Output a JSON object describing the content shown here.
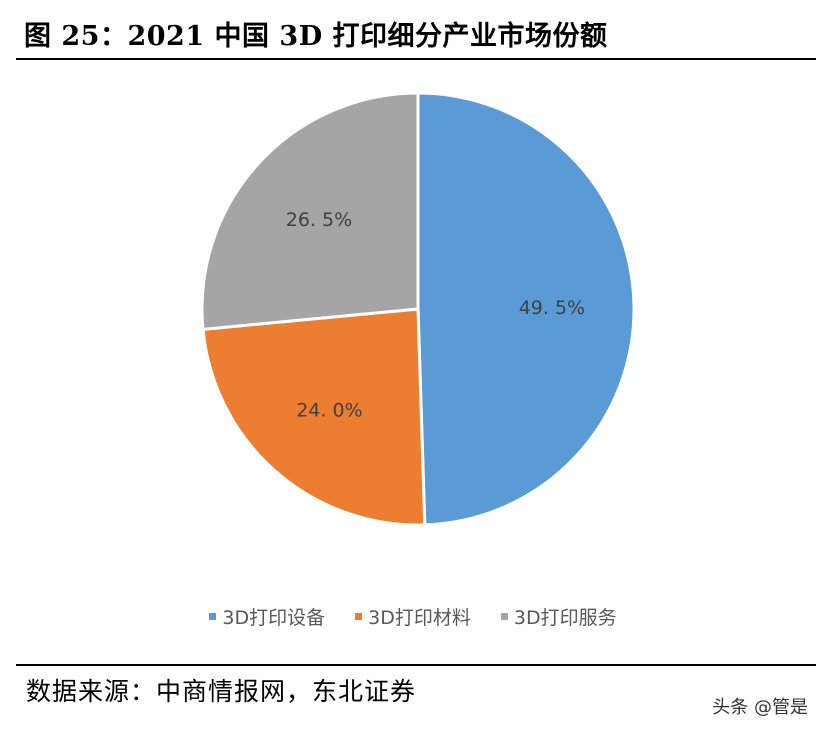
{
  "header": {
    "title": "图 25：2021 中国 3D 打印细分产业市场份额"
  },
  "chart_data": {
    "type": "pie",
    "title": "2021 中国 3D 打印细分产业市场份额",
    "categories": [
      "3D打印设备",
      "3D打印材料",
      "3D打印服务"
    ],
    "values": [
      49.5,
      24.0,
      26.5
    ],
    "labels": [
      "49. 5%",
      "24. 0%",
      "26. 5%"
    ],
    "colors": [
      "#5B9BD5",
      "#ED7D31",
      "#A5A5A5"
    ],
    "start_angle": "12 o'clock, clockwise",
    "legend_position": "bottom"
  },
  "legend": {
    "items": [
      {
        "label": "3D打印设备",
        "color": "#5B9BD5"
      },
      {
        "label": "3D打印材料",
        "color": "#ED7D31"
      },
      {
        "label": "3D打印服务",
        "color": "#A5A5A5"
      }
    ]
  },
  "footer": {
    "source": "数据来源：中商情报网，东北证券",
    "watermark": "头条 @管是"
  }
}
